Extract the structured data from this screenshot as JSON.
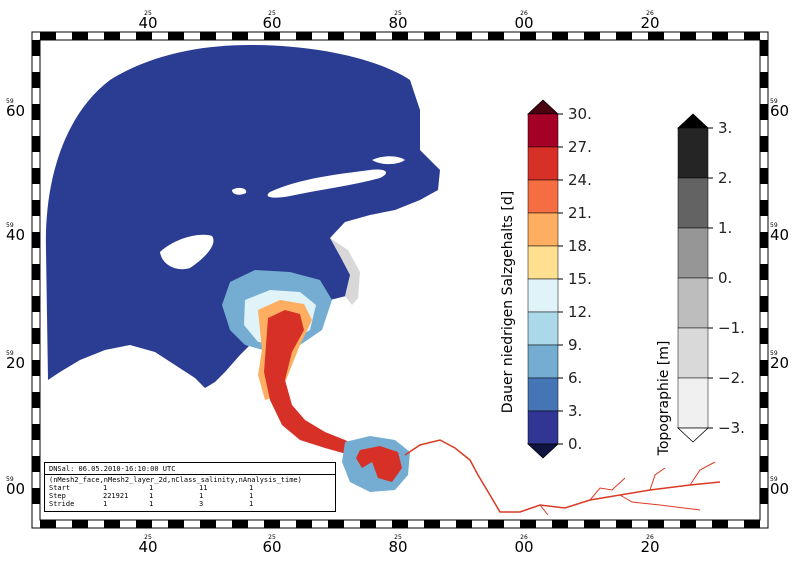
{
  "map": {
    "top_labels": [
      {
        "small": "25",
        "big": "40"
      },
      {
        "small": "25",
        "big": "60"
      },
      {
        "small": "25",
        "big": "80"
      },
      {
        "small": "26",
        "big": "00"
      },
      {
        "small": "26",
        "big": "20"
      }
    ],
    "bottom_labels": [
      {
        "small": "25",
        "big": "40"
      },
      {
        "small": "25",
        "big": "60"
      },
      {
        "small": "25",
        "big": "80"
      },
      {
        "small": "26",
        "big": "00"
      },
      {
        "small": "26",
        "big": "20"
      }
    ],
    "left_labels": [
      {
        "small": "59",
        "big": "60"
      },
      {
        "small": "59",
        "big": "40"
      },
      {
        "small": "59",
        "big": "20"
      },
      {
        "small": "59",
        "big": "00"
      }
    ],
    "right_labels": [
      {
        "small": "59",
        "big": "60"
      },
      {
        "small": "59",
        "big": "40"
      },
      {
        "small": "59",
        "big": "20"
      },
      {
        "small": "59",
        "big": "00"
      }
    ],
    "colors": {
      "water": "#2b3c93",
      "land": "#ffffff",
      "river": "#d93a24",
      "shoal": "#d8d8d8"
    }
  },
  "colorbar_salinity": {
    "title": "Dauer niedrigen Salzgehalts [d]",
    "labels": [
      "30.",
      "27.",
      "24.",
      "21.",
      "18.",
      "15.",
      "12.",
      "9.",
      "6.",
      "3.",
      "0."
    ],
    "colors": [
      "#a50026",
      "#d73027",
      "#f46d43",
      "#fdae61",
      "#fee090",
      "#e0f3f8",
      "#abd9e9",
      "#74add1",
      "#4575b4",
      "#313695"
    ],
    "over_color": "#4a0010",
    "under_color": "#0f1440"
  },
  "colorbar_topo": {
    "title": "Topographie [m]",
    "labels": [
      "3.",
      "2.",
      "1.",
      "0.",
      "−1.",
      "−2.",
      "−3."
    ],
    "colors": [
      "#252525",
      "#636363",
      "#969696",
      "#bdbdbd",
      "#d9d9d9",
      "#f0f0f0"
    ],
    "over_color": "#000000",
    "under_color": "#ffffff"
  },
  "info": {
    "line1": "DNSal: 06.05.2010-16:10:00 UTC",
    "line2": "(nMesh2_face,nMesh2_layer_2d,nClass_salinity,nAnalysis_time)",
    "rows": [
      {
        "name": "Start",
        "v1": "1",
        "v2": "1",
        "v3": "11",
        "v4": "1"
      },
      {
        "name": "Step",
        "v1": "221921",
        "v2": "1",
        "v3": "1",
        "v4": "1"
      },
      {
        "name": "Stride",
        "v1": "1",
        "v2": "1",
        "v3": "3",
        "v4": "1"
      }
    ]
  }
}
